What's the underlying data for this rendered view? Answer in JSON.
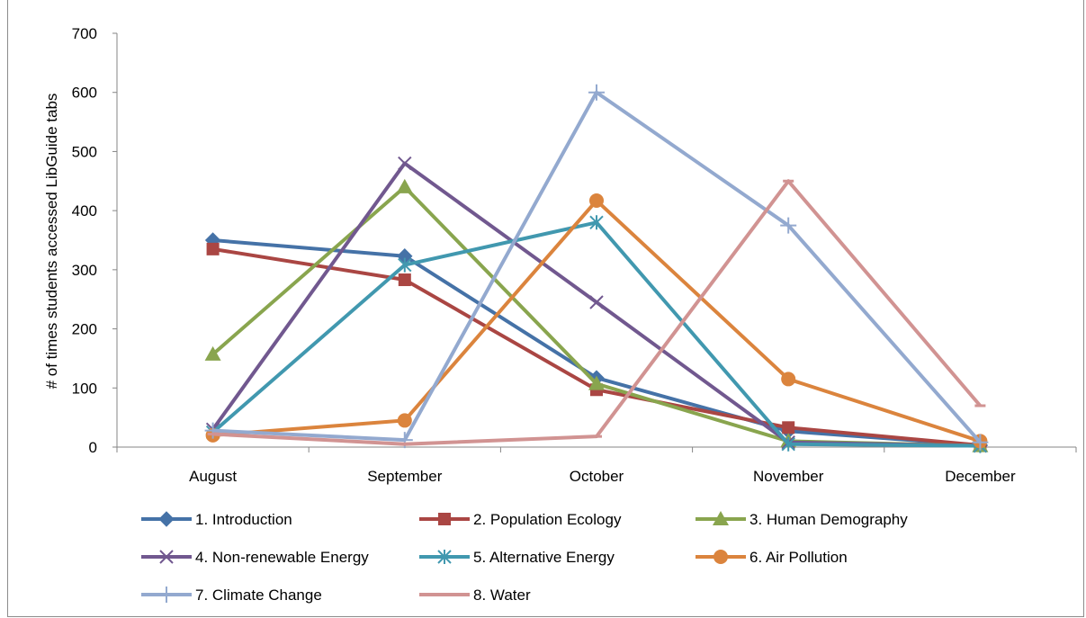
{
  "chart_data": {
    "type": "line",
    "title": "",
    "xlabel": "",
    "ylabel": "# of times students accessed LibGuide tabs",
    "categories": [
      "August",
      "September",
      "October",
      "November",
      "December"
    ],
    "ylim": [
      0,
      700
    ],
    "yticks": [
      0,
      100,
      200,
      300,
      400,
      500,
      600,
      700
    ],
    "grid": false,
    "legend_position": "bottom",
    "series": [
      {
        "name": "1. Introduction",
        "values": [
          350,
          323,
          117,
          27,
          3
        ],
        "color": "#4572a7",
        "marker": "diamond"
      },
      {
        "name": "2. Population Ecology",
        "values": [
          335,
          283,
          97,
          33,
          3
        ],
        "color": "#aa4643",
        "marker": "square"
      },
      {
        "name": "3. Human Demography",
        "values": [
          157,
          440,
          107,
          10,
          2
        ],
        "color": "#89a54e",
        "marker": "triangle"
      },
      {
        "name": "4. Non-renewable Energy",
        "values": [
          30,
          480,
          245,
          8,
          2
        ],
        "color": "#71588f",
        "marker": "x"
      },
      {
        "name": "5. Alternative Energy",
        "values": [
          25,
          308,
          380,
          5,
          2
        ],
        "color": "#4198af",
        "marker": "star"
      },
      {
        "name": "6. Air Pollution",
        "values": [
          20,
          45,
          417,
          115,
          10
        ],
        "color": "#db843d",
        "marker": "circle"
      },
      {
        "name": "7. Climate Change",
        "values": [
          28,
          12,
          600,
          375,
          8
        ],
        "color": "#93a9cf",
        "marker": "plus"
      },
      {
        "name": "8. Water",
        "values": [
          22,
          5,
          18,
          450,
          70
        ],
        "color": "#d19392",
        "marker": "dash"
      }
    ]
  }
}
